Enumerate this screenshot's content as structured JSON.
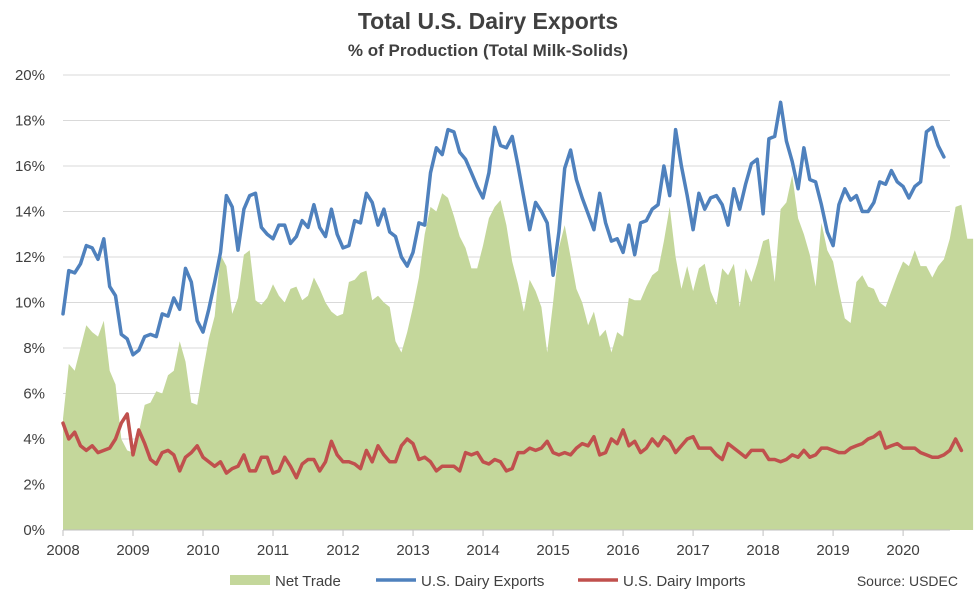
{
  "chart_data": {
    "type": "line",
    "title": "Total U.S. Dairy Exports",
    "subtitle": "% of Production (Total Milk-Solids)",
    "source": "Source: USDEC",
    "xlabel": "",
    "ylabel": "",
    "xlim": [
      2008.0,
      2020.67
    ],
    "ylim": [
      0,
      20
    ],
    "x_ticks": [
      "2008",
      "2009",
      "2010",
      "2011",
      "2012",
      "2013",
      "2014",
      "2015",
      "2016",
      "2017",
      "2018",
      "2019",
      "2020"
    ],
    "y_ticks": [
      "0%",
      "2%",
      "4%",
      "6%",
      "8%",
      "10%",
      "12%",
      "14%",
      "16%",
      "18%",
      "20%"
    ],
    "grid": "horizontal",
    "legend": "bottom",
    "colors": {
      "net_trade": "#c4d79b",
      "exports": "#4f81bd",
      "imports": "#c0504d"
    },
    "series": [
      {
        "name": "Net Trade",
        "type": "area",
        "values": [
          4.9,
          7.3,
          7.0,
          8.0,
          9.0,
          8.7,
          8.5,
          9.2,
          7.0,
          6.4,
          4.0,
          3.5,
          3.4,
          4.3,
          5.5,
          5.6,
          6.1,
          6.0,
          6.8,
          7.0,
          8.3,
          7.4,
          5.6,
          5.5,
          7.0,
          8.4,
          9.4,
          12.1,
          11.6,
          9.5,
          10.2,
          12.1,
          12.3,
          10.1,
          9.9,
          10.2,
          10.8,
          10.3,
          10.0,
          10.6,
          10.7,
          10.1,
          10.3,
          11.1,
          10.6,
          10.0,
          9.6,
          9.4,
          9.5,
          10.9,
          11.0,
          11.3,
          11.4,
          10.1,
          10.3,
          10.0,
          9.8,
          8.3,
          7.8,
          8.7,
          9.8,
          11.1,
          13.0,
          14.2,
          14.0,
          14.8,
          14.6,
          13.8,
          12.9,
          12.4,
          11.5,
          11.5,
          12.5,
          13.7,
          14.2,
          14.5,
          13.4,
          11.8,
          10.8,
          9.6,
          11.0,
          10.5,
          9.8,
          7.8,
          10.0,
          12.4,
          13.4,
          12.0,
          10.6,
          10.0,
          9.0,
          9.6,
          8.5,
          8.8,
          7.8,
          8.7,
          8.5,
          10.2,
          10.1,
          10.1,
          10.7,
          11.2,
          11.4,
          12.7,
          14.2,
          12.0,
          10.6,
          11.6,
          10.5,
          11.5,
          11.7,
          10.5,
          9.9,
          11.5,
          11.2,
          11.7,
          9.8,
          11.5,
          10.9,
          11.7,
          12.7,
          12.8,
          10.9,
          14.1,
          14.4,
          15.6,
          13.7,
          13.0,
          12.1,
          10.7,
          13.5,
          12.3,
          11.8,
          10.5,
          9.3,
          9.1,
          10.9,
          11.2,
          10.7,
          10.6,
          10.0,
          9.8,
          10.5,
          11.2,
          11.8,
          11.6,
          12.3,
          11.6,
          11.6,
          11.1,
          11.6,
          11.9,
          12.8,
          14.2,
          14.3,
          12.8,
          12.8
        ]
      },
      {
        "name": "U.S. Dairy Exports",
        "type": "line",
        "values": [
          9.5,
          11.4,
          11.3,
          11.7,
          12.5,
          12.4,
          11.9,
          12.8,
          10.7,
          10.3,
          8.6,
          8.4,
          7.7,
          7.9,
          8.5,
          8.6,
          8.5,
          9.5,
          9.4,
          10.2,
          9.7,
          11.5,
          10.9,
          9.2,
          8.7,
          9.7,
          10.9,
          12.2,
          14.7,
          14.2,
          12.3,
          14.1,
          14.7,
          14.8,
          13.3,
          13.0,
          12.8,
          13.4,
          13.4,
          12.6,
          12.9,
          13.6,
          13.3,
          14.3,
          13.3,
          12.9,
          14.1,
          13.0,
          12.4,
          12.5,
          13.6,
          13.5,
          14.8,
          14.4,
          13.4,
          14.1,
          13.1,
          12.9,
          12.0,
          11.6,
          12.2,
          13.5,
          13.4,
          15.7,
          16.8,
          16.5,
          17.6,
          17.5,
          16.6,
          16.3,
          15.7,
          15.1,
          14.6,
          15.7,
          17.7,
          16.9,
          16.8,
          17.3,
          16.0,
          14.6,
          13.2,
          14.4,
          14.0,
          13.5,
          11.2,
          13.1,
          15.9,
          16.7,
          15.4,
          14.6,
          13.9,
          13.2,
          14.8,
          13.5,
          12.7,
          12.8,
          12.2,
          13.4,
          12.1,
          13.5,
          13.6,
          14.1,
          14.3,
          16.0,
          14.7,
          17.6,
          16.0,
          14.7,
          13.2,
          14.8,
          14.1,
          14.6,
          14.7,
          14.3,
          13.4,
          15.0,
          14.1,
          15.2,
          16.1,
          16.3,
          13.9,
          17.2,
          17.3,
          18.8,
          17.1,
          16.2,
          15.0,
          16.8,
          15.4,
          15.3,
          14.3,
          13.1,
          12.5,
          14.3,
          15.0,
          14.5,
          14.7,
          14.0,
          14.0,
          14.4,
          15.3,
          15.2,
          15.8,
          15.3,
          15.1,
          14.6,
          15.1,
          15.3,
          17.5,
          17.7,
          16.9,
          16.4
        ]
      },
      {
        "name": "U.S. Dairy Imports",
        "type": "line",
        "values": [
          4.7,
          4.0,
          4.3,
          3.7,
          3.5,
          3.7,
          3.4,
          3.5,
          3.6,
          4.0,
          4.7,
          5.1,
          3.3,
          4.4,
          3.8,
          3.1,
          2.9,
          3.4,
          3.5,
          3.3,
          2.6,
          3.2,
          3.4,
          3.7,
          3.2,
          3.0,
          2.8,
          3.0,
          2.5,
          2.7,
          2.8,
          3.3,
          2.6,
          2.6,
          3.2,
          3.2,
          2.5,
          2.6,
          3.2,
          2.8,
          2.3,
          2.9,
          3.1,
          3.1,
          2.6,
          3.0,
          3.9,
          3.3,
          3.0,
          3.0,
          2.9,
          2.7,
          3.5,
          3.0,
          3.7,
          3.3,
          3.0,
          3.0,
          3.7,
          4.0,
          3.8,
          3.1,
          3.2,
          3.0,
          2.6,
          2.8,
          2.8,
          2.8,
          2.6,
          3.4,
          3.3,
          3.4,
          3.0,
          2.9,
          3.1,
          3.0,
          2.6,
          2.7,
          3.4,
          3.4,
          3.6,
          3.5,
          3.6,
          3.9,
          3.4,
          3.3,
          3.4,
          3.3,
          3.6,
          3.8,
          3.7,
          4.1,
          3.3,
          3.4,
          4.0,
          3.8,
          4.4,
          3.7,
          3.9,
          3.4,
          3.6,
          4.0,
          3.7,
          4.1,
          3.9,
          3.4,
          3.7,
          4.0,
          4.1,
          3.6,
          3.6,
          3.6,
          3.3,
          3.1,
          3.8,
          3.6,
          3.4,
          3.2,
          3.5,
          3.5,
          3.5,
          3.1,
          3.1,
          3.0,
          3.1,
          3.3,
          3.2,
          3.5,
          3.2,
          3.3,
          3.6,
          3.6,
          3.5,
          3.4,
          3.4,
          3.6,
          3.7,
          3.8,
          4.0,
          4.1,
          4.3,
          3.6,
          3.7,
          3.8,
          3.6,
          3.6,
          3.6,
          3.4,
          3.3,
          3.2,
          3.2,
          3.3,
          3.5,
          4.0,
          3.5
        ]
      }
    ]
  }
}
